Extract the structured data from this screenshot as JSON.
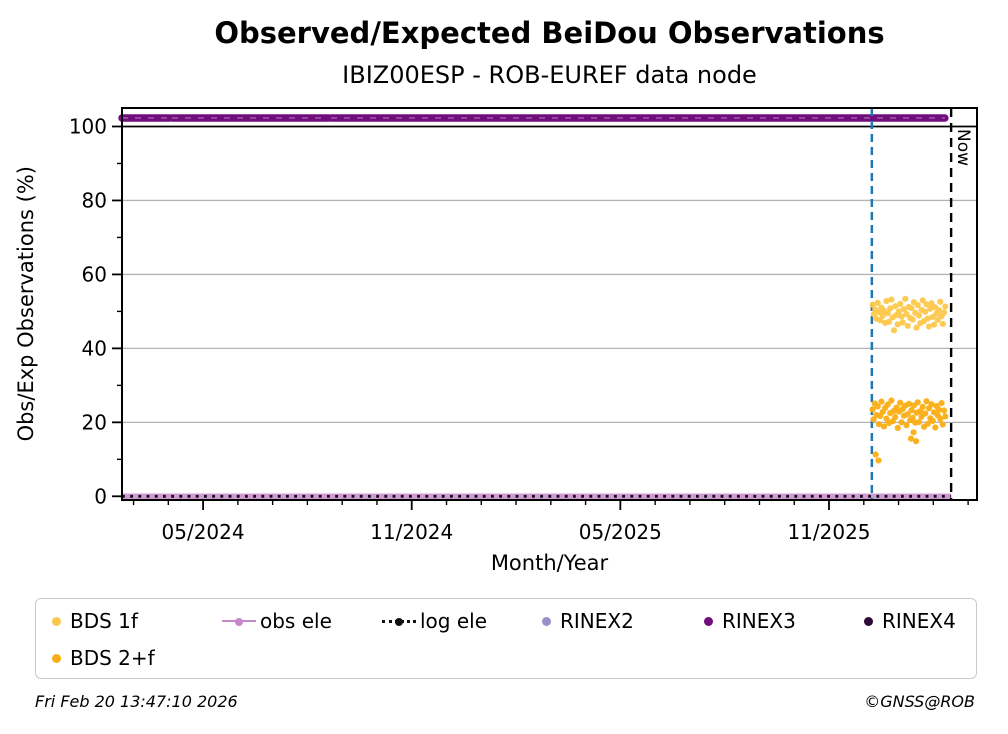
{
  "header": {
    "title": "Observed/Expected BeiDou Observations",
    "subtitle": "IBIZ00ESP - ROB-EUREF data node"
  },
  "chart_data": {
    "type": "scatter",
    "title": "Observed/Expected BeiDou Observations",
    "subtitle": "IBIZ00ESP - ROB-EUREF data node",
    "xlabel": "Month/Year",
    "ylabel": "Obs/Exp Observations (%)",
    "xlim": [
      2024.139,
      2026.188
    ],
    "ylim": [
      -1,
      105
    ],
    "grid": "horizontal-major",
    "grid_color": "#b3b3b3",
    "frame_color": "#000000",
    "x_ticks": {
      "major": [
        {
          "v": 2024.3333,
          "label": "05/2024"
        },
        {
          "v": 2024.8333,
          "label": "11/2024"
        },
        {
          "v": 2025.3333,
          "label": "05/2025"
        },
        {
          "v": 2025.8333,
          "label": "11/2025"
        }
      ],
      "minor": [
        2024.1667,
        2024.25,
        2024.4167,
        2024.5,
        2024.5833,
        2024.6667,
        2024.75,
        2024.9167,
        2025.0,
        2025.0833,
        2025.1667,
        2025.25,
        2025.4167,
        2025.5,
        2025.5833,
        2025.6667,
        2025.75,
        2025.9167,
        2026.0,
        2026.0833,
        2026.1667
      ]
    },
    "y_ticks": {
      "major": [
        {
          "v": 0,
          "label": "0"
        },
        {
          "v": 20,
          "label": "20"
        },
        {
          "v": 40,
          "label": "40"
        },
        {
          "v": 60,
          "label": "60"
        },
        {
          "v": 80,
          "label": "80"
        },
        {
          "v": 100,
          "label": "100"
        }
      ],
      "minor": [
        10,
        30,
        50,
        70,
        90
      ]
    },
    "grid_y": [
      20,
      40,
      60,
      80
    ],
    "reference_lines": [
      {
        "id": "expected-100",
        "y": 100,
        "color": "#000000",
        "style": "solid"
      }
    ],
    "vlines": [
      {
        "id": "bds-tracking-start",
        "x": 2025.936,
        "color": "#1f77b4",
        "style": "dashed",
        "label": ""
      },
      {
        "id": "now",
        "x": 2026.126,
        "color": "#000000",
        "style": "dashed",
        "label": "Now"
      }
    ],
    "series": [
      {
        "id": "rinex3",
        "name": "RINEX3",
        "type": "line-segments",
        "color": "#720d7d",
        "y": 102.3,
        "segments": [
          [
            2024.139,
            2024.253
          ],
          [
            2024.259,
            2024.634
          ],
          [
            2024.64,
            2026.111
          ]
        ]
      },
      {
        "id": "obs-ele",
        "name": "obs ele",
        "type": "line",
        "color": "#d29ad4",
        "y": 0,
        "x_range": [
          2024.139,
          2026.126
        ]
      },
      {
        "id": "log-ele",
        "name": "log ele",
        "type": "dotted-line",
        "color": "#111111",
        "y": 0,
        "x_range": [
          2024.139,
          2026.126
        ]
      },
      {
        "id": "bds-1f",
        "name": "BDS 1f",
        "type": "scatter",
        "color": "#fcc84c",
        "points": [
          [
            2025.938,
            51.8
          ],
          [
            2025.941,
            49.2
          ],
          [
            2025.944,
            50.5
          ],
          [
            2025.947,
            48.0
          ],
          [
            2025.95,
            52.3
          ],
          [
            2025.953,
            49.8
          ],
          [
            2025.956,
            47.6
          ],
          [
            2025.959,
            51.0
          ],
          [
            2025.962,
            48.8
          ],
          [
            2025.965,
            50.2
          ],
          [
            2025.968,
            46.9
          ],
          [
            2025.971,
            52.8
          ],
          [
            2025.974,
            49.5
          ],
          [
            2025.977,
            47.2
          ],
          [
            2025.98,
            50.8
          ],
          [
            2025.983,
            53.2
          ],
          [
            2025.986,
            48.4
          ],
          [
            2025.989,
            44.9
          ],
          [
            2025.992,
            51.4
          ],
          [
            2025.995,
            49.0
          ],
          [
            2025.998,
            46.5
          ],
          [
            2026.001,
            50.0
          ],
          [
            2026.004,
            52.0
          ],
          [
            2026.007,
            48.6
          ],
          [
            2026.01,
            47.0
          ],
          [
            2026.013,
            50.6
          ],
          [
            2026.016,
            53.4
          ],
          [
            2026.019,
            49.3
          ],
          [
            2026.022,
            46.1
          ],
          [
            2026.025,
            51.2
          ],
          [
            2026.028,
            48.2
          ],
          [
            2026.031,
            50.9
          ],
          [
            2026.034,
            47.8
          ],
          [
            2026.037,
            52.5
          ],
          [
            2026.04,
            49.6
          ],
          [
            2026.043,
            45.6
          ],
          [
            2026.046,
            51.7
          ],
          [
            2026.049,
            48.9
          ],
          [
            2026.052,
            46.8
          ],
          [
            2026.055,
            50.4
          ],
          [
            2026.058,
            53.0
          ],
          [
            2026.061,
            47.4
          ],
          [
            2026.064,
            49.9
          ],
          [
            2026.067,
            51.9
          ],
          [
            2026.07,
            48.1
          ],
          [
            2026.073,
            45.9
          ],
          [
            2026.076,
            50.7
          ],
          [
            2026.079,
            52.2
          ],
          [
            2026.082,
            48.5
          ],
          [
            2026.085,
            46.4
          ],
          [
            2026.088,
            51.1
          ],
          [
            2026.091,
            49.4
          ],
          [
            2026.094,
            47.7
          ],
          [
            2026.097,
            50.3
          ],
          [
            2026.1,
            52.6
          ],
          [
            2026.103,
            48.7
          ],
          [
            2026.106,
            46.6
          ],
          [
            2026.109,
            49.7
          ],
          [
            2026.112,
            51.3
          ]
        ]
      },
      {
        "id": "bds-2f",
        "name": "BDS 2+f",
        "type": "scatter",
        "color": "#fbae14",
        "points": [
          [
            2025.938,
            23.5
          ],
          [
            2025.94,
            20.8
          ],
          [
            2025.943,
            25.1
          ],
          [
            2025.945,
            11.3
          ],
          [
            2025.947,
            22.0
          ],
          [
            2025.95,
            24.3
          ],
          [
            2025.952,
            9.7
          ],
          [
            2025.953,
            19.5
          ],
          [
            2025.956,
            21.7
          ],
          [
            2025.959,
            25.6
          ],
          [
            2025.962,
            22.8
          ],
          [
            2025.965,
            18.9
          ],
          [
            2025.968,
            23.9
          ],
          [
            2025.971,
            21.0
          ],
          [
            2025.974,
            24.8
          ],
          [
            2025.977,
            19.8
          ],
          [
            2025.98,
            22.5
          ],
          [
            2025.983,
            25.9
          ],
          [
            2025.986,
            20.3
          ],
          [
            2025.989,
            23.1
          ],
          [
            2025.992,
            21.4
          ],
          [
            2025.995,
            24.0
          ],
          [
            2025.998,
            18.5
          ],
          [
            2026.001,
            22.9
          ],
          [
            2026.004,
            25.3
          ],
          [
            2026.007,
            20.0
          ],
          [
            2026.01,
            23.6
          ],
          [
            2026.013,
            21.8
          ],
          [
            2026.016,
            24.5
          ],
          [
            2026.019,
            19.2
          ],
          [
            2026.022,
            22.2
          ],
          [
            2026.025,
            25.0
          ],
          [
            2026.028,
            20.6
          ],
          [
            2026.03,
            15.6
          ],
          [
            2026.031,
            23.3
          ],
          [
            2026.034,
            21.2
          ],
          [
            2026.036,
            17.3
          ],
          [
            2026.037,
            24.6
          ],
          [
            2026.04,
            19.9
          ],
          [
            2026.042,
            14.9
          ],
          [
            2026.043,
            22.6
          ],
          [
            2026.046,
            25.4
          ],
          [
            2026.049,
            20.1
          ],
          [
            2026.052,
            23.0
          ],
          [
            2026.055,
            21.5
          ],
          [
            2026.058,
            24.2
          ],
          [
            2026.061,
            18.8
          ],
          [
            2026.064,
            22.4
          ],
          [
            2026.067,
            25.7
          ],
          [
            2026.07,
            19.6
          ],
          [
            2026.073,
            23.8
          ],
          [
            2026.076,
            21.1
          ],
          [
            2026.079,
            24.9
          ],
          [
            2026.082,
            20.4
          ],
          [
            2026.085,
            22.7
          ],
          [
            2026.088,
            18.6
          ],
          [
            2026.091,
            24.4
          ],
          [
            2026.094,
            21.9
          ],
          [
            2026.097,
            23.4
          ],
          [
            2026.1,
            20.9
          ],
          [
            2026.103,
            25.2
          ],
          [
            2026.106,
            19.4
          ],
          [
            2026.109,
            23.2
          ],
          [
            2026.112,
            21.6
          ]
        ]
      }
    ],
    "now_label": "Now"
  },
  "legend": {
    "items": [
      {
        "id": "bds-1f",
        "label": "BDS 1f",
        "marker": "dot",
        "color": "#fcc84c",
        "row": 0,
        "col": 0
      },
      {
        "id": "obs-ele",
        "label": "obs ele",
        "marker": "line-dot",
        "color": "#c788c9",
        "row": 0,
        "col": 1
      },
      {
        "id": "log-ele",
        "label": "log ele",
        "marker": "dotted-line-dot",
        "color": "#111111",
        "row": 0,
        "col": 2
      },
      {
        "id": "rinex2",
        "label": "RINEX2",
        "marker": "dot",
        "color": "#988fcb",
        "row": 0,
        "col": 3
      },
      {
        "id": "rinex3",
        "label": "RINEX3",
        "marker": "dot",
        "color": "#720d7d",
        "row": 0,
        "col": 4
      },
      {
        "id": "rinex4",
        "label": "RINEX4",
        "marker": "dot",
        "color": "#2c0936",
        "row": 0,
        "col": 5
      },
      {
        "id": "bds-2f",
        "label": "BDS 2+f",
        "marker": "dot",
        "color": "#fbae14",
        "row": 1,
        "col": 0
      }
    ]
  },
  "footer": {
    "timestamp": "Fri Feb 20 13:47:10 2026",
    "credit": "©GNSS@ROB"
  }
}
